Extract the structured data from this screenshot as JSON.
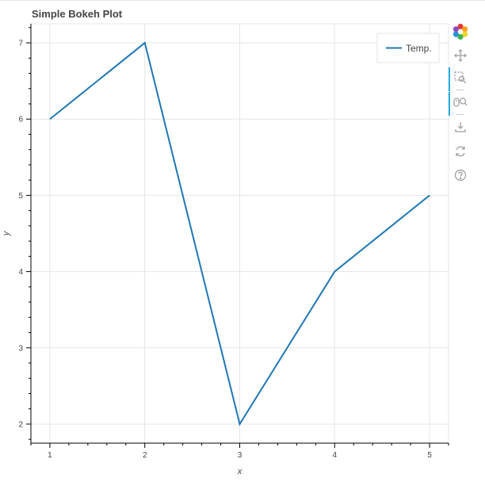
{
  "title": "Simple Bokeh Plot",
  "chart_data": {
    "type": "line",
    "title": "Simple Bokeh Plot",
    "xlabel": "x",
    "ylabel": "y",
    "x": [
      1,
      2,
      3,
      4,
      5
    ],
    "series": [
      {
        "name": "Temp.",
        "values": [
          6,
          7,
          2,
          4,
          5
        ],
        "color": "#1f77b4"
      }
    ],
    "xlim": [
      0.8,
      5.2
    ],
    "ylim": [
      1.75,
      7.25
    ],
    "xticks": [
      1,
      2,
      3,
      4,
      5
    ],
    "yticks": [
      2,
      3,
      4,
      5,
      6,
      7
    ],
    "grid": true,
    "legend_position": "top-right"
  },
  "toolbar": {
    "tools": [
      "bokeh-logo-icon",
      "pan-icon",
      "box-zoom-icon",
      "wheel-zoom-icon",
      "save-icon",
      "reset-icon",
      "help-icon"
    ],
    "active_tools": [
      "box-zoom-icon",
      "wheel-zoom-icon"
    ]
  }
}
